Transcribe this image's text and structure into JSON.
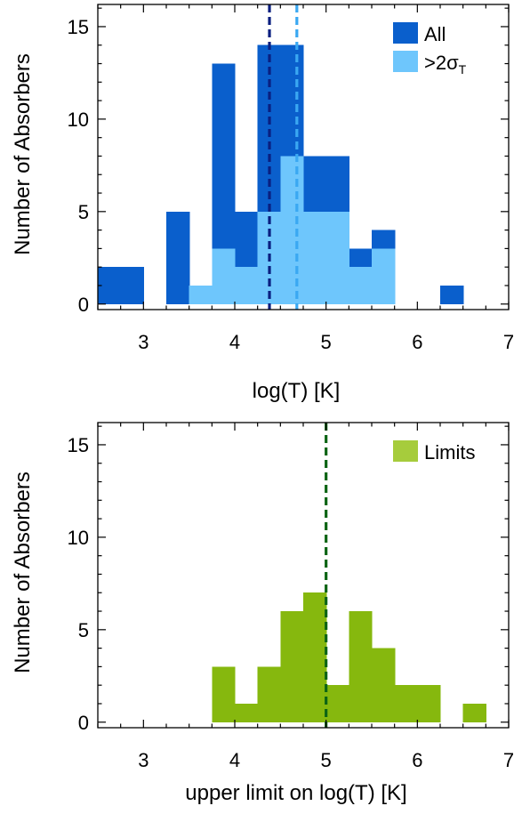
{
  "chart_data": [
    {
      "type": "bar",
      "xlabel": "log(T) [K]",
      "ylabel": "Number of Absorbers",
      "xlim": [
        2.5,
        7.0
      ],
      "ylim": [
        -0.3,
        16.2
      ],
      "xticks": [
        3,
        4,
        5,
        6,
        7
      ],
      "yticks": [
        0,
        5,
        10,
        15
      ],
      "bin_width": 0.25,
      "legend_position": "top-right",
      "series": [
        {
          "name": "All",
          "color": "#0a5fcc",
          "bins": [
            2.5,
            2.75,
            3.0,
            3.25,
            3.5,
            3.75,
            4.0,
            4.25,
            4.5,
            4.75,
            5.0,
            5.25,
            5.5,
            5.75,
            6.0,
            6.25,
            6.5,
            6.75
          ],
          "values": [
            2,
            2,
            0,
            5,
            1,
            13,
            5,
            14,
            14,
            8,
            8,
            3,
            4,
            0,
            0,
            1,
            0,
            0
          ]
        },
        {
          "name": ">2σ",
          "name_subscript": "T",
          "color": "#6ec6fc",
          "bins": [
            2.5,
            2.75,
            3.0,
            3.25,
            3.5,
            3.75,
            4.0,
            4.25,
            4.5,
            4.75,
            5.0,
            5.25,
            5.5,
            5.75,
            6.0,
            6.25,
            6.5,
            6.75
          ],
          "values": [
            0,
            0,
            0,
            0,
            1,
            3,
            2,
            5,
            8,
            5,
            5,
            2,
            3,
            0,
            0,
            0,
            0,
            0
          ]
        }
      ],
      "vlines": [
        {
          "x": 4.38,
          "color": "#0a1f80",
          "style": "dashed"
        },
        {
          "x": 4.68,
          "color": "#3aa8f2",
          "style": "dashed"
        }
      ]
    },
    {
      "type": "bar",
      "xlabel": "upper limit on log(T) [K]",
      "ylabel": "Number of Absorbers",
      "xlim": [
        2.5,
        7.0
      ],
      "ylim": [
        -0.3,
        16.2
      ],
      "xticks": [
        3,
        4,
        5,
        6,
        7
      ],
      "yticks": [
        0,
        5,
        10,
        15
      ],
      "bin_width": 0.25,
      "legend_position": "top-right",
      "series": [
        {
          "name": "Limits",
          "color": "#86b80e",
          "legend_color": "#a6cc3c",
          "bins": [
            2.5,
            2.75,
            3.0,
            3.25,
            3.5,
            3.75,
            4.0,
            4.25,
            4.5,
            4.75,
            5.0,
            5.25,
            5.5,
            5.75,
            6.0,
            6.25,
            6.5,
            6.75
          ],
          "values": [
            0,
            0,
            0,
            0,
            0,
            3,
            1,
            3,
            6,
            7,
            2,
            6,
            4,
            2,
            2,
            0,
            1,
            0
          ]
        }
      ],
      "vlines": [
        {
          "x": 5.0,
          "color": "#0c6414",
          "style": "dashed"
        }
      ]
    }
  ]
}
